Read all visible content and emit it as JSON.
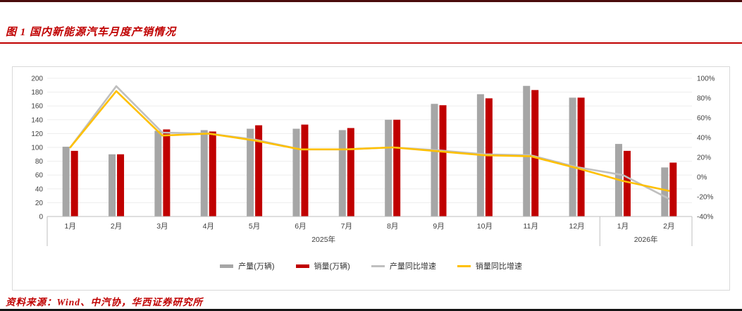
{
  "page": {
    "title": "图 1 国内新能源汽车月度产销情况",
    "source": "资料来源：Wind、中汽协，华西证券研究所"
  },
  "colors": {
    "title_red": "#c00000",
    "bar_production": "#a6a6a6",
    "bar_sales": "#c00000",
    "line_production_yoy": "#bfbfbf",
    "line_sales_yoy": "#ffc000",
    "axis_text": "#404040",
    "grid": "#ededed",
    "axis_line": "#bfbfbf",
    "chart_border": "#d9d9d9"
  },
  "chart_data": {
    "type": "bar+line",
    "title": "国内新能源汽车月度产销情况",
    "categories": [
      "1月",
      "2月",
      "3月",
      "4月",
      "5月",
      "6月",
      "7月",
      "8月",
      "9月",
      "10月",
      "11月",
      "12月",
      "1月",
      "2月"
    ],
    "year_groups": [
      {
        "label": "2025年",
        "span": 12
      },
      {
        "label": "2026年",
        "span": 2
      }
    ],
    "series": [
      {
        "name": "产量(万辆)",
        "type": "bar",
        "axis": "left",
        "values": [
          101,
          90,
          124,
          125,
          127,
          127,
          125,
          140,
          163,
          177,
          189,
          172,
          105,
          71
        ]
      },
      {
        "name": "销量(万辆)",
        "type": "bar",
        "axis": "left",
        "values": [
          95,
          90,
          126,
          123,
          132,
          133,
          128,
          140,
          161,
          171,
          183,
          172,
          95,
          78
        ]
      },
      {
        "name": "产量同比增速",
        "type": "line",
        "axis": "right",
        "values": [
          30,
          92,
          45,
          44,
          38,
          28,
          28,
          30,
          27,
          23,
          22,
          10,
          2,
          -22
        ]
      },
      {
        "name": "销量同比增速",
        "type": "line",
        "axis": "right",
        "values": [
          30,
          87,
          42,
          44,
          37,
          28,
          28,
          30,
          26,
          22,
          21,
          9,
          -4,
          -14
        ]
      }
    ],
    "left_axis": {
      "min": 0,
      "max": 200,
      "step": 20,
      "suffix": ""
    },
    "right_axis": {
      "min": -40,
      "max": 100,
      "step": 20,
      "suffix": "%"
    },
    "grid": true,
    "legend_position": "bottom"
  }
}
